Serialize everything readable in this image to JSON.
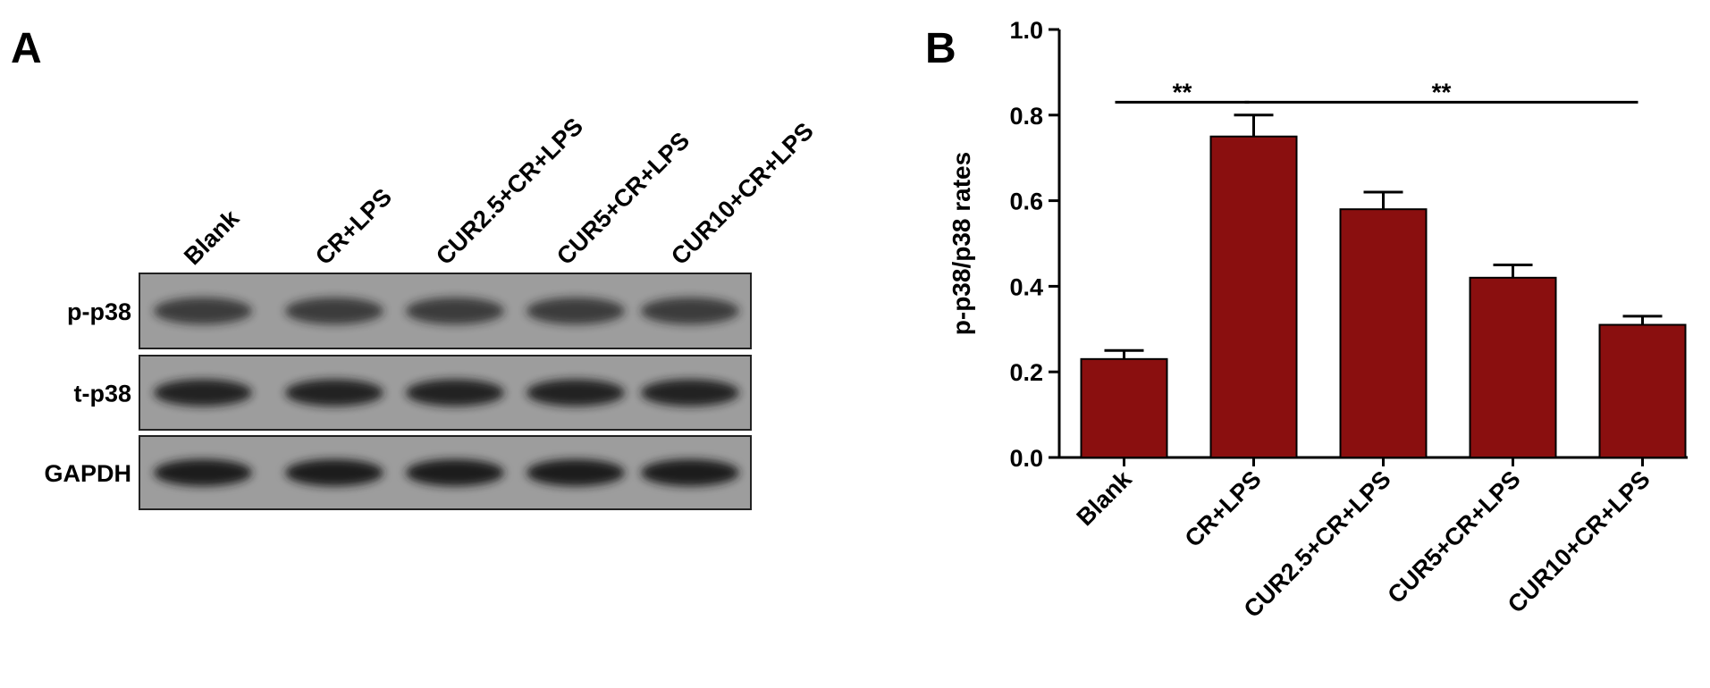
{
  "blot": {
    "panel_label": "A",
    "lanes": [
      "Blank",
      "CR+LPS",
      "CUR2.5+CR+LPS",
      "CUR5+CR+LPS",
      "CUR10+CR+LPS"
    ],
    "rows": [
      "p-p38",
      "t-p38",
      "GAPDH"
    ]
  },
  "chart_data": {
    "type": "bar",
    "panel_label": "B",
    "ylabel": "p-p38/p38 rates",
    "categories": [
      "Blank",
      "CR+LPS",
      "CUR2.5+CR+LPS",
      "CUR5+CR+LPS",
      "CUR10+CR+LPS"
    ],
    "values": [
      0.23,
      0.75,
      0.58,
      0.42,
      0.31
    ],
    "errors": [
      0.02,
      0.05,
      0.04,
      0.03,
      0.02
    ],
    "color": "#8a0f0f",
    "ylim": [
      0,
      1.0
    ],
    "yticks": [
      {
        "value": 0,
        "label": "0.0"
      },
      0.2,
      0.4,
      0.6,
      0.8,
      {
        "value": 1.0,
        "label": "1.0"
      }
    ],
    "annotations": [
      {
        "text": "**",
        "from": "Blank",
        "to": "CR+LPS",
        "y": 0.83
      },
      {
        "text": "**",
        "from": "CR+LPS",
        "to": "CUR10+CR+LPS",
        "y": 0.83
      }
    ]
  }
}
